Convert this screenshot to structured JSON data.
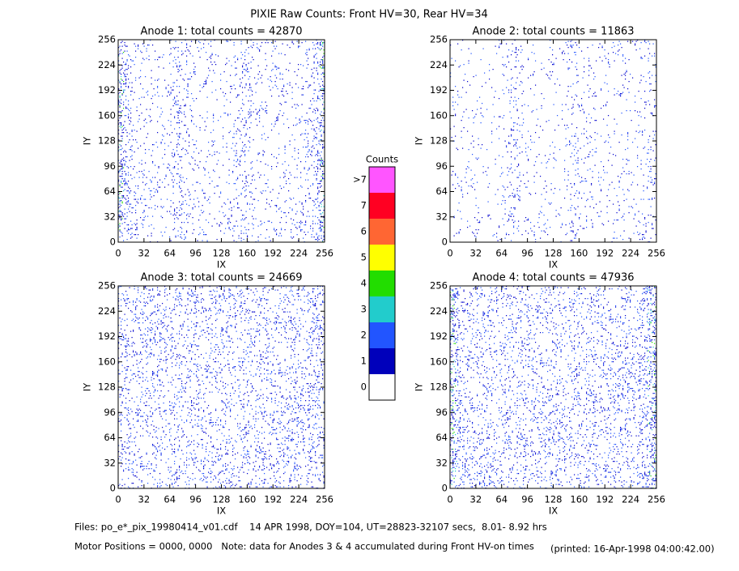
{
  "title": "PIXIE Raw Counts:  Front HV=30, Rear HV=34",
  "chart_data": [
    {
      "type": "heatmap",
      "title": "Anode 1: total counts = 42870",
      "xlabel": "IX",
      "ylabel": "IY",
      "xlim": [
        0,
        256
      ],
      "ylim": [
        0,
        256
      ],
      "xticks": [
        0,
        32,
        64,
        96,
        128,
        160,
        192,
        224,
        256
      ],
      "yticks": [
        0,
        32,
        64,
        96,
        128,
        160,
        192,
        224,
        256
      ]
    },
    {
      "type": "heatmap",
      "title": "Anode 2: total counts = 11863",
      "xlabel": "IX",
      "ylabel": "IY",
      "xlim": [
        0,
        256
      ],
      "ylim": [
        0,
        256
      ],
      "xticks": [
        0,
        32,
        64,
        96,
        128,
        160,
        192,
        224,
        256
      ],
      "yticks": [
        0,
        32,
        64,
        96,
        128,
        160,
        192,
        224,
        256
      ]
    },
    {
      "type": "heatmap",
      "title": "Anode 3: total counts = 24669",
      "xlabel": "IX",
      "ylabel": "IY",
      "xlim": [
        0,
        256
      ],
      "ylim": [
        0,
        256
      ],
      "xticks": [
        0,
        32,
        64,
        96,
        128,
        160,
        192,
        224,
        256
      ],
      "yticks": [
        0,
        32,
        64,
        96,
        128,
        160,
        192,
        224,
        256
      ]
    },
    {
      "type": "heatmap",
      "title": "Anode 4: total counts = 47936",
      "xlabel": "IX",
      "ylabel": "IY",
      "xlim": [
        0,
        256
      ],
      "ylim": [
        0,
        256
      ],
      "xticks": [
        0,
        32,
        64,
        96,
        128,
        160,
        192,
        224,
        256
      ],
      "yticks": [
        0,
        32,
        64,
        96,
        128,
        160,
        192,
        224,
        256
      ]
    }
  ],
  "colorbar": {
    "title": "Counts",
    "categories": [
      "0",
      "1",
      "2",
      "3",
      "4",
      "5",
      "6",
      "7",
      ">7"
    ],
    "colors": [
      "#ffffff",
      "#0000bb",
      "#2255ff",
      "#22cccc",
      "#22dd00",
      "#ffff00",
      "#ff6633",
      "#ff0022",
      "#ff55ff"
    ]
  },
  "footer": {
    "files": "Files: po_e*_pix_19980414_v01.cdf    14 APR 1998, DOY=104, UT=28823-32107 secs,  8.01- 8.92 hrs",
    "motor": "Motor Positions = 0000, 0000   Note: data for Anodes 3 & 4 accumulated during Front HV-on times",
    "printed": "(printed: 16-Apr-1998 04:00:42.00)"
  }
}
